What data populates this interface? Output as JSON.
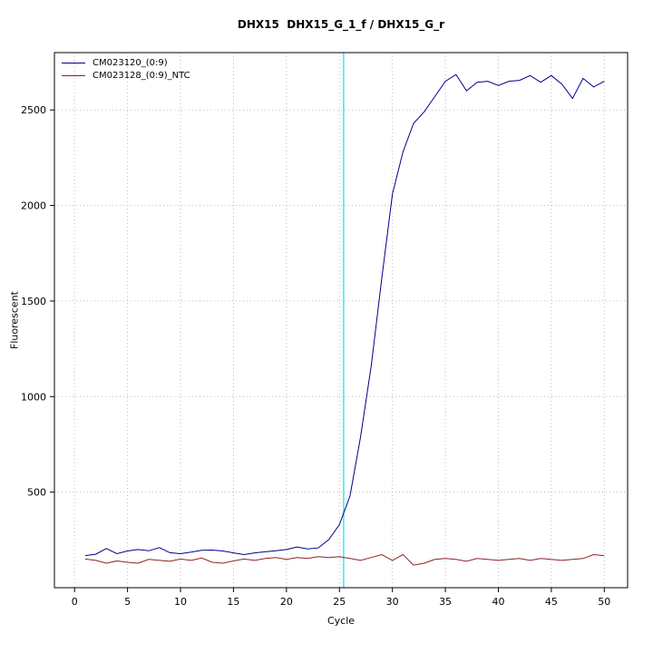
{
  "chart_data": {
    "type": "line",
    "title": "DHX15  DHX15_G_1_f / DHX15_G_r",
    "xlabel": "Cycle",
    "ylabel": "Fluorescent",
    "xlim": [
      -1.9,
      52.2
    ],
    "ylim": [
      0,
      2800
    ],
    "xticks": [
      0,
      5,
      10,
      15,
      20,
      25,
      30,
      35,
      40,
      45,
      50
    ],
    "yticks": [
      500,
      1000,
      1500,
      2000,
      2500
    ],
    "grid": true,
    "grid_color": "#bdbdbd",
    "legend_position": "top-left",
    "threshold": {
      "x": 25.4,
      "color": "#00e5ee"
    },
    "x": [
      1,
      2,
      3,
      4,
      5,
      6,
      7,
      8,
      9,
      10,
      11,
      12,
      13,
      14,
      15,
      16,
      17,
      18,
      19,
      20,
      21,
      22,
      23,
      24,
      25,
      26,
      27,
      28,
      29,
      30,
      31,
      32,
      33,
      34,
      35,
      36,
      37,
      38,
      39,
      40,
      41,
      42,
      43,
      44,
      45,
      46,
      47,
      48,
      49,
      50
    ],
    "series": [
      {
        "name": "CM023120_(0:9)",
        "color": "#00008b",
        "values": [
          168,
          175,
          205,
          178,
          192,
          200,
          193,
          210,
          183,
          178,
          186,
          196,
          197,
          192,
          182,
          173,
          182,
          188,
          193,
          200,
          213,
          203,
          208,
          252,
          330,
          480,
          790,
          1160,
          1620,
          2060,
          2280,
          2430,
          2490,
          2570,
          2650,
          2685,
          2600,
          2645,
          2650,
          2628,
          2650,
          2655,
          2680,
          2645,
          2680,
          2635,
          2560,
          2665,
          2620,
          2650
        ]
      },
      {
        "name": "CM023128_(0:9)_NTC",
        "color": "#8b2323",
        "values": [
          150,
          143,
          128,
          140,
          133,
          128,
          148,
          143,
          138,
          150,
          143,
          155,
          133,
          128,
          140,
          150,
          143,
          153,
          158,
          148,
          158,
          153,
          163,
          158,
          163,
          153,
          143,
          158,
          173,
          143,
          173,
          118,
          128,
          148,
          153,
          148,
          138,
          153,
          148,
          143,
          148,
          153,
          143,
          153,
          148,
          143,
          148,
          153,
          173,
          168
        ]
      }
    ]
  }
}
